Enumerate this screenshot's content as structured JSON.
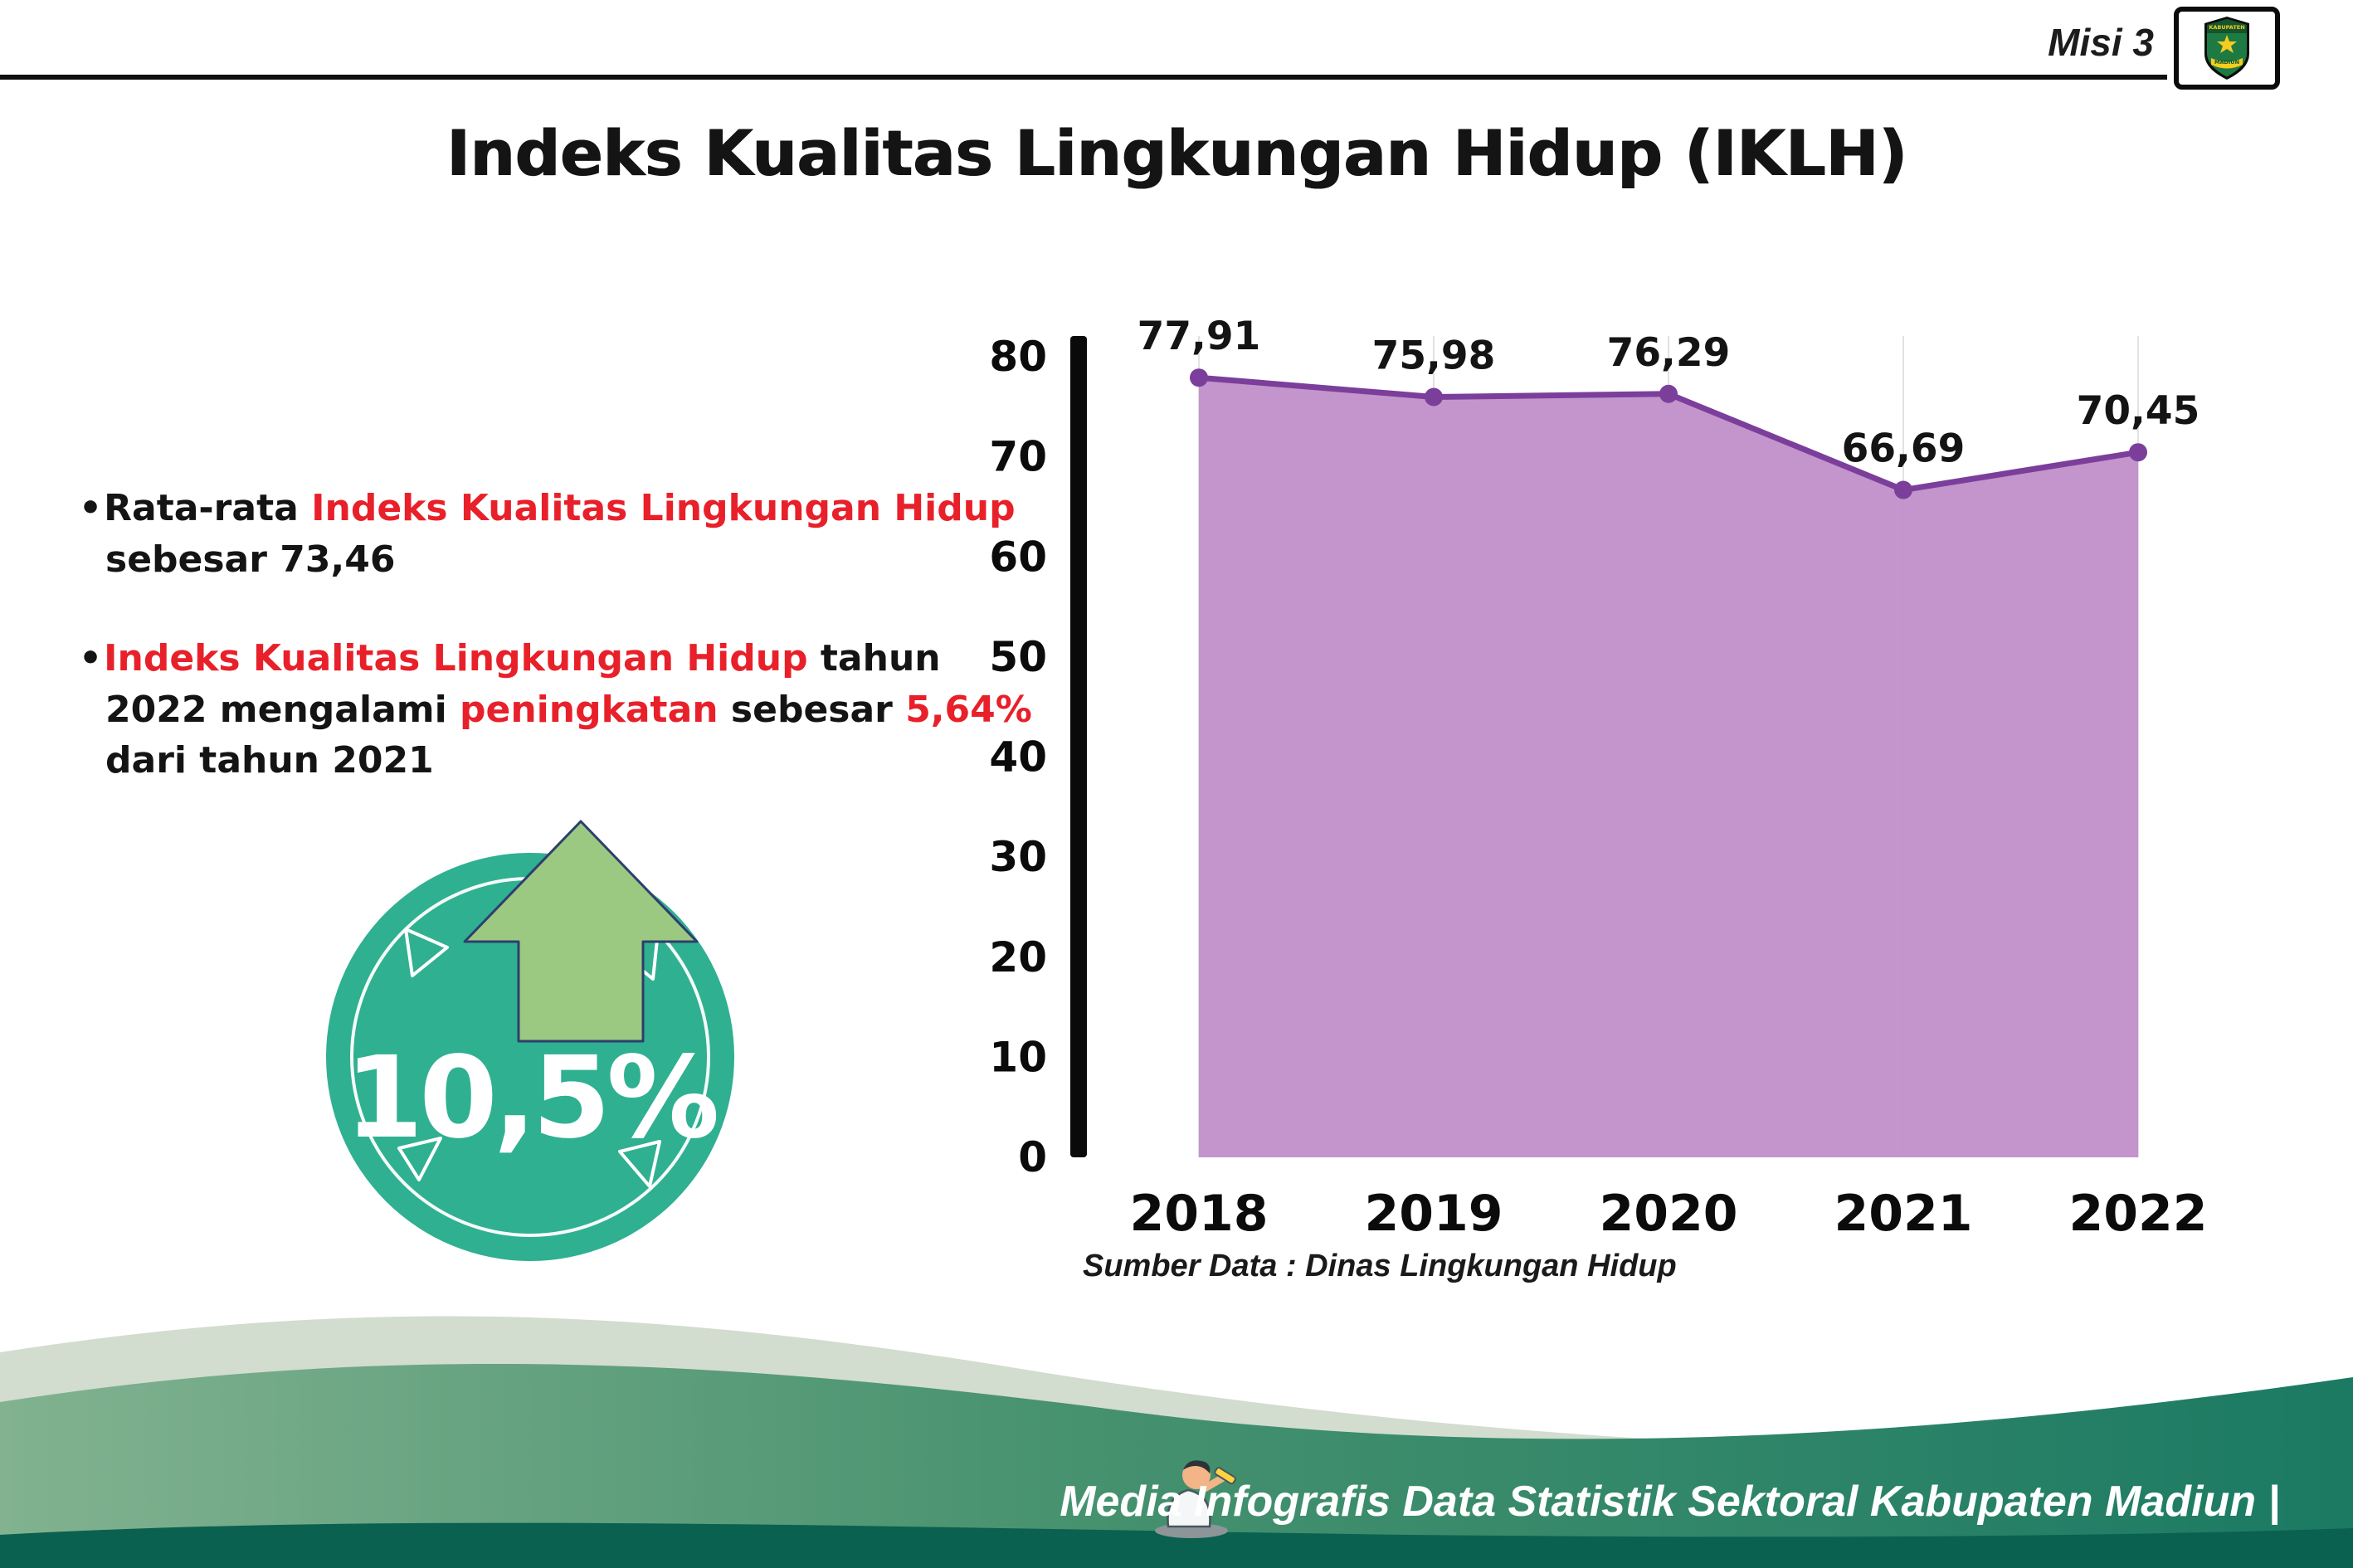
{
  "page": {
    "misi_label": "Misi 3",
    "title": "Indeks Kualitas Lingkungan Hidup (IKLH)",
    "bullet_marker": "•"
  },
  "logo": {
    "top_text": "KABUPATEN",
    "bottom_text": "MADIUN"
  },
  "bullets": [
    {
      "segments": [
        {
          "text": "Rata-rata ",
          "red": false
        },
        {
          "text": "Indeks Kualitas Lingkungan Hidup",
          "red": true
        },
        {
          "text": " sebesar 73,46",
          "red": false
        }
      ]
    },
    {
      "segments": [
        {
          "text": "Indeks Kualitas Lingkungan Hidup",
          "red": true
        },
        {
          "text": " tahun 2022 mengalami ",
          "red": false
        },
        {
          "text": "peningkatan",
          "red": true
        },
        {
          "text": " sebesar ",
          "red": false
        },
        {
          "text": "5,64%",
          "red": true
        },
        {
          "text": " dari tahun 2021",
          "red": false
        }
      ]
    }
  ],
  "badge": {
    "value": "10,5%"
  },
  "chart_data": {
    "type": "area",
    "title": "",
    "categories": [
      "2018",
      "2019",
      "2020",
      "2021",
      "2022"
    ],
    "values": [
      77.91,
      75.98,
      76.29,
      66.69,
      70.45
    ],
    "point_labels": [
      "77,91",
      "75,98",
      "76,29",
      "66,69",
      "70,45"
    ],
    "ylim": [
      0,
      80
    ],
    "yticks": [
      0,
      10,
      20,
      30,
      40,
      50,
      60,
      70,
      80
    ],
    "xlabel": "",
    "ylabel": "",
    "grid": "vertical-faint",
    "legend": "none",
    "source": "Sumber Data : Dinas Lingkungan Hidup",
    "line_color": "#7b3f9b",
    "fill_color": "#c08fc9",
    "fill_opacity": 0.95
  },
  "footer": {
    "text": "Media Infografis Data Statistik Sektoral Kabupaten Madiun |"
  },
  "colors": {
    "accent_red": "#e8202a",
    "badge_teal": "#2fb091",
    "arrow_green": "#9cc981",
    "axis_black": "#0a0a0a",
    "sage_wave": "#d2dccf",
    "footer_green_light": "#82b290",
    "footer_green_dark": "#1b7a63",
    "footer_strip": "#0b614f"
  }
}
